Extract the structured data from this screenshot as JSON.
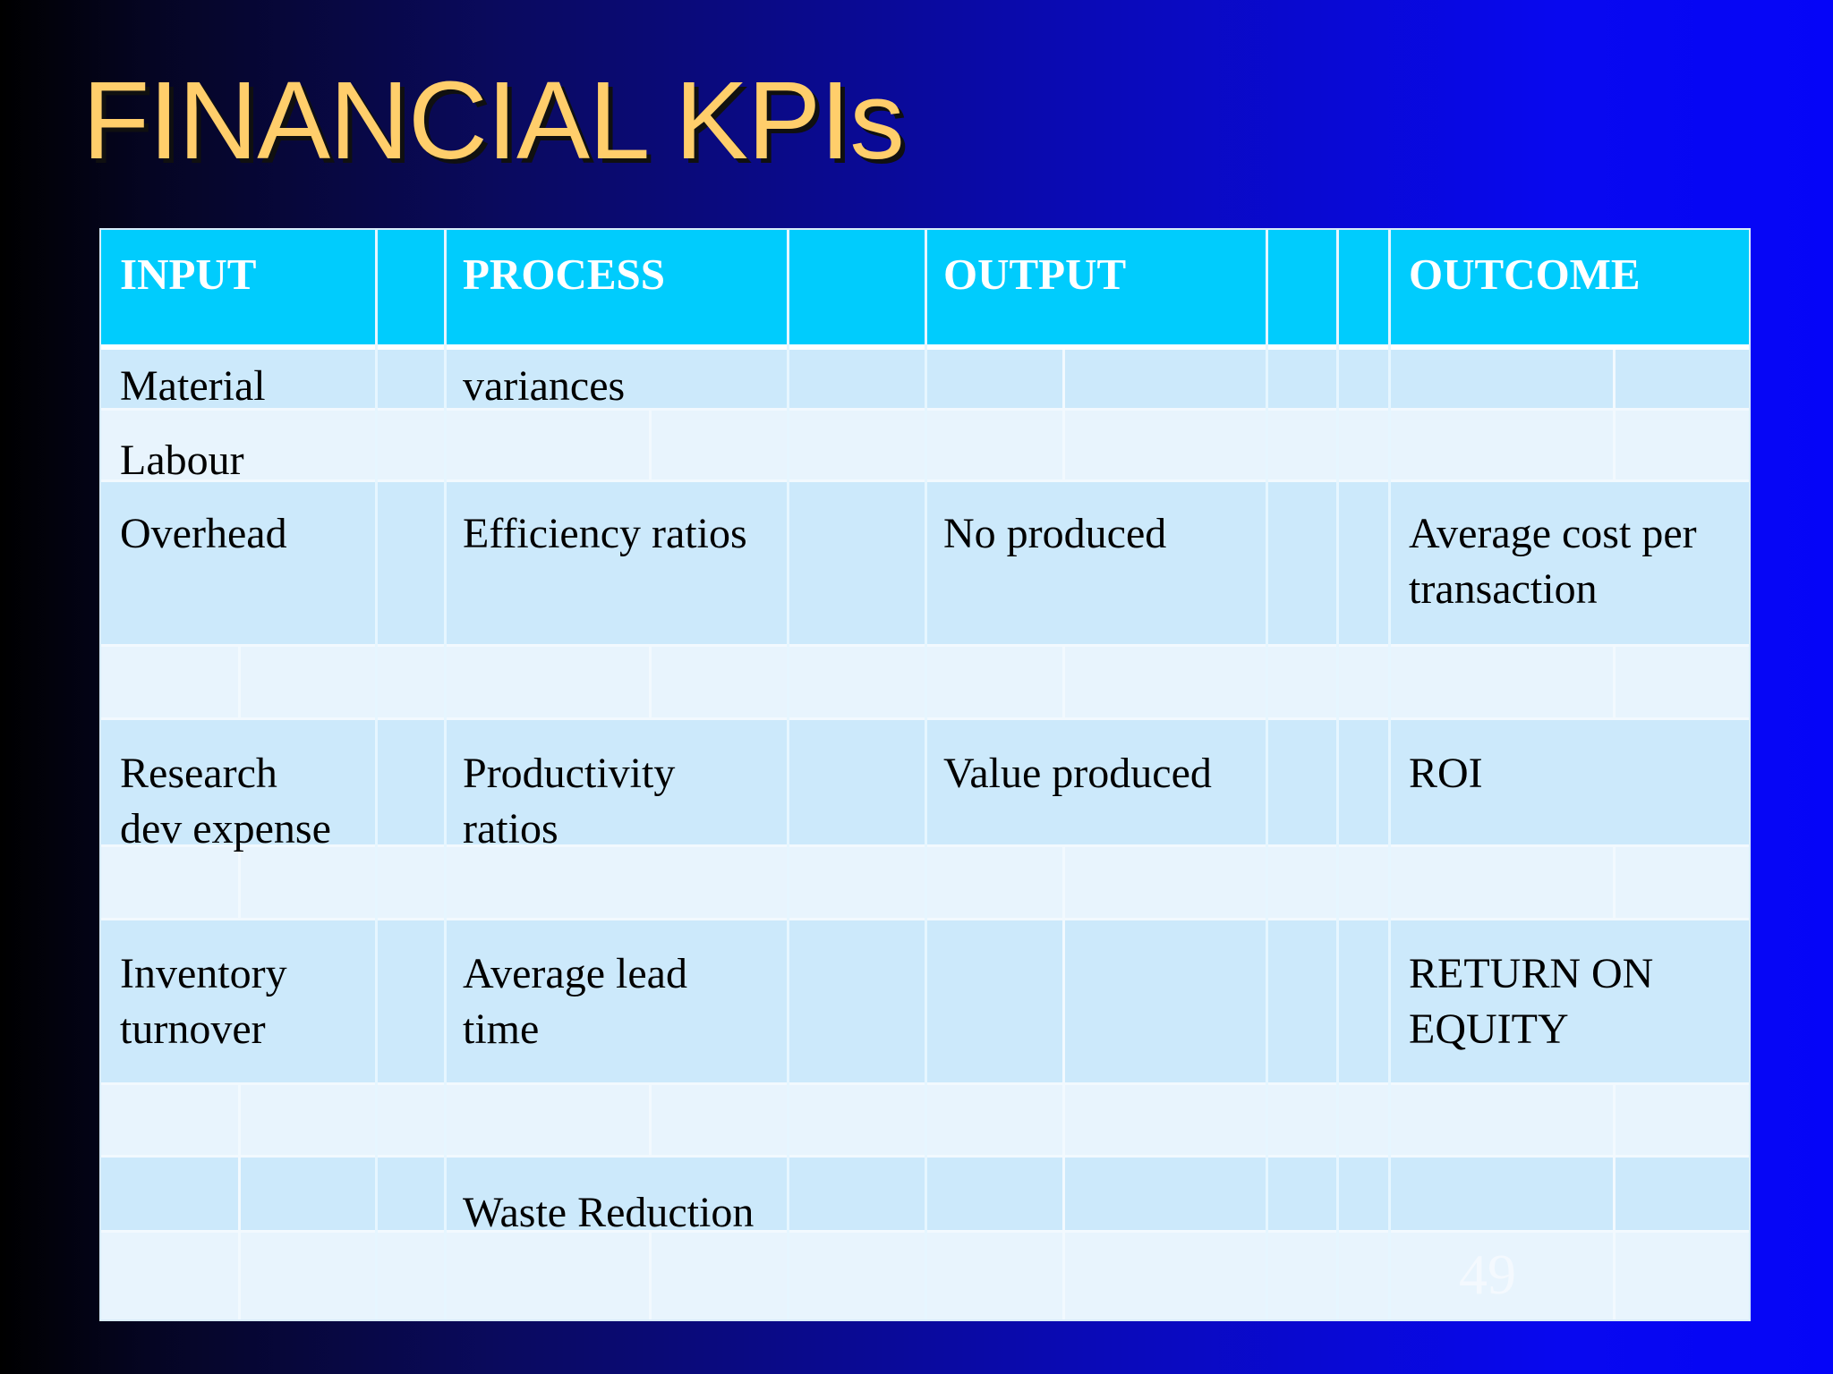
{
  "slide": {
    "title": "FINANCIAL KPIs",
    "page_number": "49"
  },
  "table": {
    "headers": [
      "INPUT",
      "PROCESS",
      "OUTPUT",
      "OUTCOME"
    ],
    "rows": [
      {
        "input": "Material",
        "process": "variances",
        "output": "",
        "outcome": ""
      },
      {
        "input": "Labour",
        "process": "",
        "output": "",
        "outcome": ""
      },
      {
        "input": "Overhead",
        "process": "Efficiency ratios",
        "output": "No produced",
        "outcome": "Average cost per\ntransaction"
      },
      {
        "input": "",
        "process": "",
        "output": "",
        "outcome": ""
      },
      {
        "input": "Research\ndev expense",
        "process": "Productivity\nratios",
        "output": "Value produced",
        "outcome": "ROI"
      },
      {
        "input": "",
        "process": "",
        "output": "",
        "outcome": ""
      },
      {
        "input": "Inventory\nturnover",
        "process": "Average lead\ntime",
        "output": "",
        "outcome": "RETURN ON\nEQUITY"
      },
      {
        "input": "",
        "process": "",
        "output": "",
        "outcome": ""
      },
      {
        "input": "",
        "process": "Waste Reduction",
        "output": "",
        "outcome": ""
      },
      {
        "input": "",
        "process": "",
        "output": "",
        "outcome": ""
      }
    ]
  }
}
